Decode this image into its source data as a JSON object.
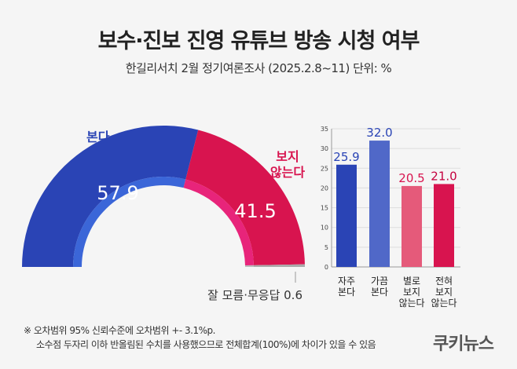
{
  "header": {
    "title": "보수·진보 진영 유튜브 방송 시청 여부",
    "subtitle": "한길리서치 2월 정기여론조사 (2025.2.8~11) 단위: %"
  },
  "chart_data": [
    {
      "type": "pie",
      "shape": "semicircle",
      "slices": [
        {
          "label": "본다",
          "value": 57.9,
          "color": "#2a44b5",
          "inner_color": "#3b66d8"
        },
        {
          "label": "보지 않는다",
          "label_lines": [
            "보지",
            "않는다"
          ],
          "value": 41.5,
          "color": "#d8144f",
          "inner_color": "#e8247a"
        },
        {
          "label": "잘 모름·무응답",
          "value": 0.6,
          "color": "#aaaaaa",
          "inner_color": "#bbbbbb"
        }
      ]
    },
    {
      "type": "bar",
      "ylim": [
        0,
        35
      ],
      "yticks": [
        0,
        5,
        10,
        15,
        20,
        25,
        30,
        35
      ],
      "grid": true,
      "categories": [
        [
          "자주",
          "본다"
        ],
        [
          "가끔",
          "본다"
        ],
        [
          "별로",
          "보지",
          "않는다"
        ],
        [
          "전혀",
          "보지",
          "않는다"
        ]
      ],
      "values": [
        25.9,
        32.0,
        20.5,
        21.0
      ],
      "labels": [
        "25.9",
        "32.0",
        "20.5",
        "21.0"
      ],
      "colors": [
        "#2a44b5",
        "#5068c8",
        "#e55a7a",
        "#d8144f"
      ],
      "label_colors": [
        "#2a44b5",
        "#2a44b5",
        "#d8144f",
        "#c4003e"
      ]
    }
  ],
  "notes": [
    "※ 오차범위 95% 신뢰수준에 오차범위 +- 3.1%p.",
    "소수점 두자리 이하 반올림된 수치를 사용했으므로 전체합계(100%)에 차이가 있을 수 있음"
  ],
  "logo": "쿠키뉴스"
}
